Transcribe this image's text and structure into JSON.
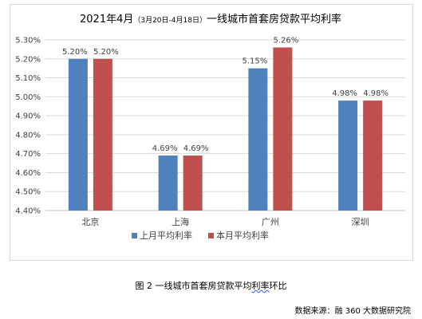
{
  "chart_data": {
    "type": "bar",
    "title_main": "2021年4月",
    "title_range": "（3月20日-4月18日）",
    "title_rest": "一线城市首套房贷款平均利率",
    "categories": [
      "北京",
      "上海",
      "广州",
      "深圳"
    ],
    "series": [
      {
        "name": "上月平均利率",
        "values": [
          5.2,
          4.69,
          5.15,
          4.98
        ],
        "labels": [
          "5.20%",
          "4.69%",
          "5.15%",
          "4.98%"
        ],
        "color": "#4f81bd"
      },
      {
        "name": "本月平均利率",
        "values": [
          5.2,
          4.69,
          5.26,
          4.98
        ],
        "labels": [
          "5.20%",
          "4.69%",
          "5.26%",
          "4.98%"
        ],
        "color": "#c0504d"
      }
    ],
    "ylim": [
      4.4,
      5.3
    ],
    "yticks": [
      "4.40%",
      "4.50%",
      "4.60%",
      "4.70%",
      "4.80%",
      "4.90%",
      "5.00%",
      "5.10%",
      "5.20%",
      "5.30%"
    ],
    "grid": true,
    "legend_position": "bottom"
  },
  "caption": {
    "prefix": "图 2  一线城市首套房贷款平均",
    "squiggle": "利率",
    "suffix": "环比"
  },
  "source": "数据来源：融 360 大数据研究院"
}
